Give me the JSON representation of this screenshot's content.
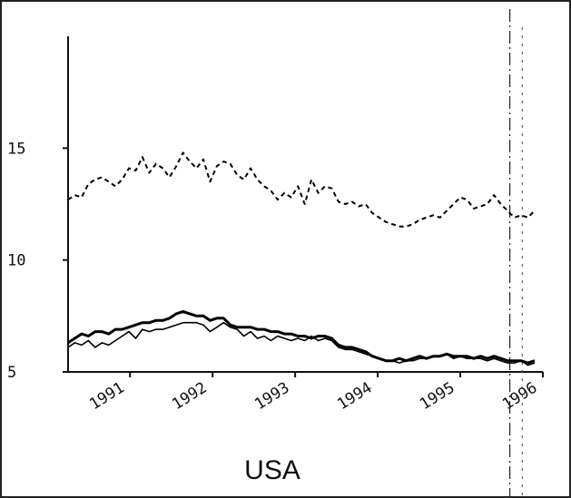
{
  "chart_data": {
    "type": "line",
    "title": "USA",
    "xlabel": "",
    "ylabel": "",
    "x_start": 1990.25,
    "x_end": 1995.9,
    "xlim": [
      1990.25,
      1996.0
    ],
    "ylim": [
      5,
      20
    ],
    "yticks": [
      5,
      10,
      15
    ],
    "xticks": [
      1991,
      1992,
      1993,
      1994,
      1995,
      1996
    ],
    "vline_x": 1995.6,
    "vline2_x": 1995.75,
    "series": [
      {
        "style": "dashed",
        "color": "#000000",
        "values": [
          12.7,
          12.9,
          12.8,
          13.4,
          13.6,
          13.7,
          13.5,
          13.3,
          13.6,
          14.1,
          14.0,
          14.6,
          13.9,
          14.3,
          14.1,
          13.7,
          14.2,
          14.8,
          14.4,
          14.1,
          14.5,
          13.5,
          14.2,
          14.4,
          14.3,
          13.8,
          13.6,
          14.1,
          13.6,
          13.3,
          13.1,
          12.7,
          13.0,
          12.8,
          13.3,
          12.5,
          13.6,
          13.0,
          13.3,
          13.2,
          12.6,
          12.5,
          12.6,
          12.4,
          12.5,
          12.1,
          11.9,
          11.7,
          11.6,
          11.5,
          11.5,
          11.6,
          11.8,
          11.9,
          12.0,
          11.9,
          12.2,
          12.5,
          12.8,
          12.7,
          12.3,
          12.4,
          12.5,
          12.9,
          12.5,
          12.2,
          11.9,
          12.0,
          11.9,
          12.2
        ]
      },
      {
        "style": "solid-thick",
        "color": "#000000",
        "values": [
          6.3,
          6.5,
          6.7,
          6.6,
          6.8,
          6.8,
          6.7,
          6.9,
          6.9,
          7.0,
          7.1,
          7.2,
          7.2,
          7.3,
          7.3,
          7.4,
          7.6,
          7.7,
          7.6,
          7.5,
          7.5,
          7.3,
          7.4,
          7.4,
          7.1,
          7.0,
          7.0,
          7.0,
          6.9,
          6.9,
          6.8,
          6.8,
          6.7,
          6.7,
          6.6,
          6.6,
          6.5,
          6.6,
          6.6,
          6.5,
          6.2,
          6.1,
          6.1,
          6.0,
          5.9,
          5.7,
          5.6,
          5.5,
          5.5,
          5.6,
          5.5,
          5.6,
          5.7,
          5.6,
          5.7,
          5.7,
          5.8,
          5.7,
          5.7,
          5.7,
          5.6,
          5.7,
          5.6,
          5.7,
          5.6,
          5.5,
          5.5,
          5.5,
          5.4,
          5.5
        ]
      },
      {
        "style": "solid-thin",
        "color": "#000000",
        "values": [
          6.1,
          6.3,
          6.2,
          6.4,
          6.1,
          6.3,
          6.2,
          6.4,
          6.6,
          6.8,
          6.5,
          6.9,
          6.8,
          6.9,
          6.9,
          7.0,
          7.1,
          7.2,
          7.2,
          7.2,
          7.1,
          6.8,
          7.0,
          7.2,
          7.0,
          6.9,
          6.6,
          6.8,
          6.5,
          6.6,
          6.4,
          6.6,
          6.5,
          6.4,
          6.5,
          6.4,
          6.6,
          6.4,
          6.5,
          6.4,
          6.1,
          6.0,
          6.0,
          5.9,
          5.8,
          5.7,
          5.6,
          5.5,
          5.5,
          5.4,
          5.5,
          5.5,
          5.6,
          5.6,
          5.7,
          5.7,
          5.8,
          5.6,
          5.7,
          5.6,
          5.6,
          5.6,
          5.5,
          5.6,
          5.5,
          5.4,
          5.4,
          5.5,
          5.3,
          5.4
        ]
      }
    ]
  }
}
